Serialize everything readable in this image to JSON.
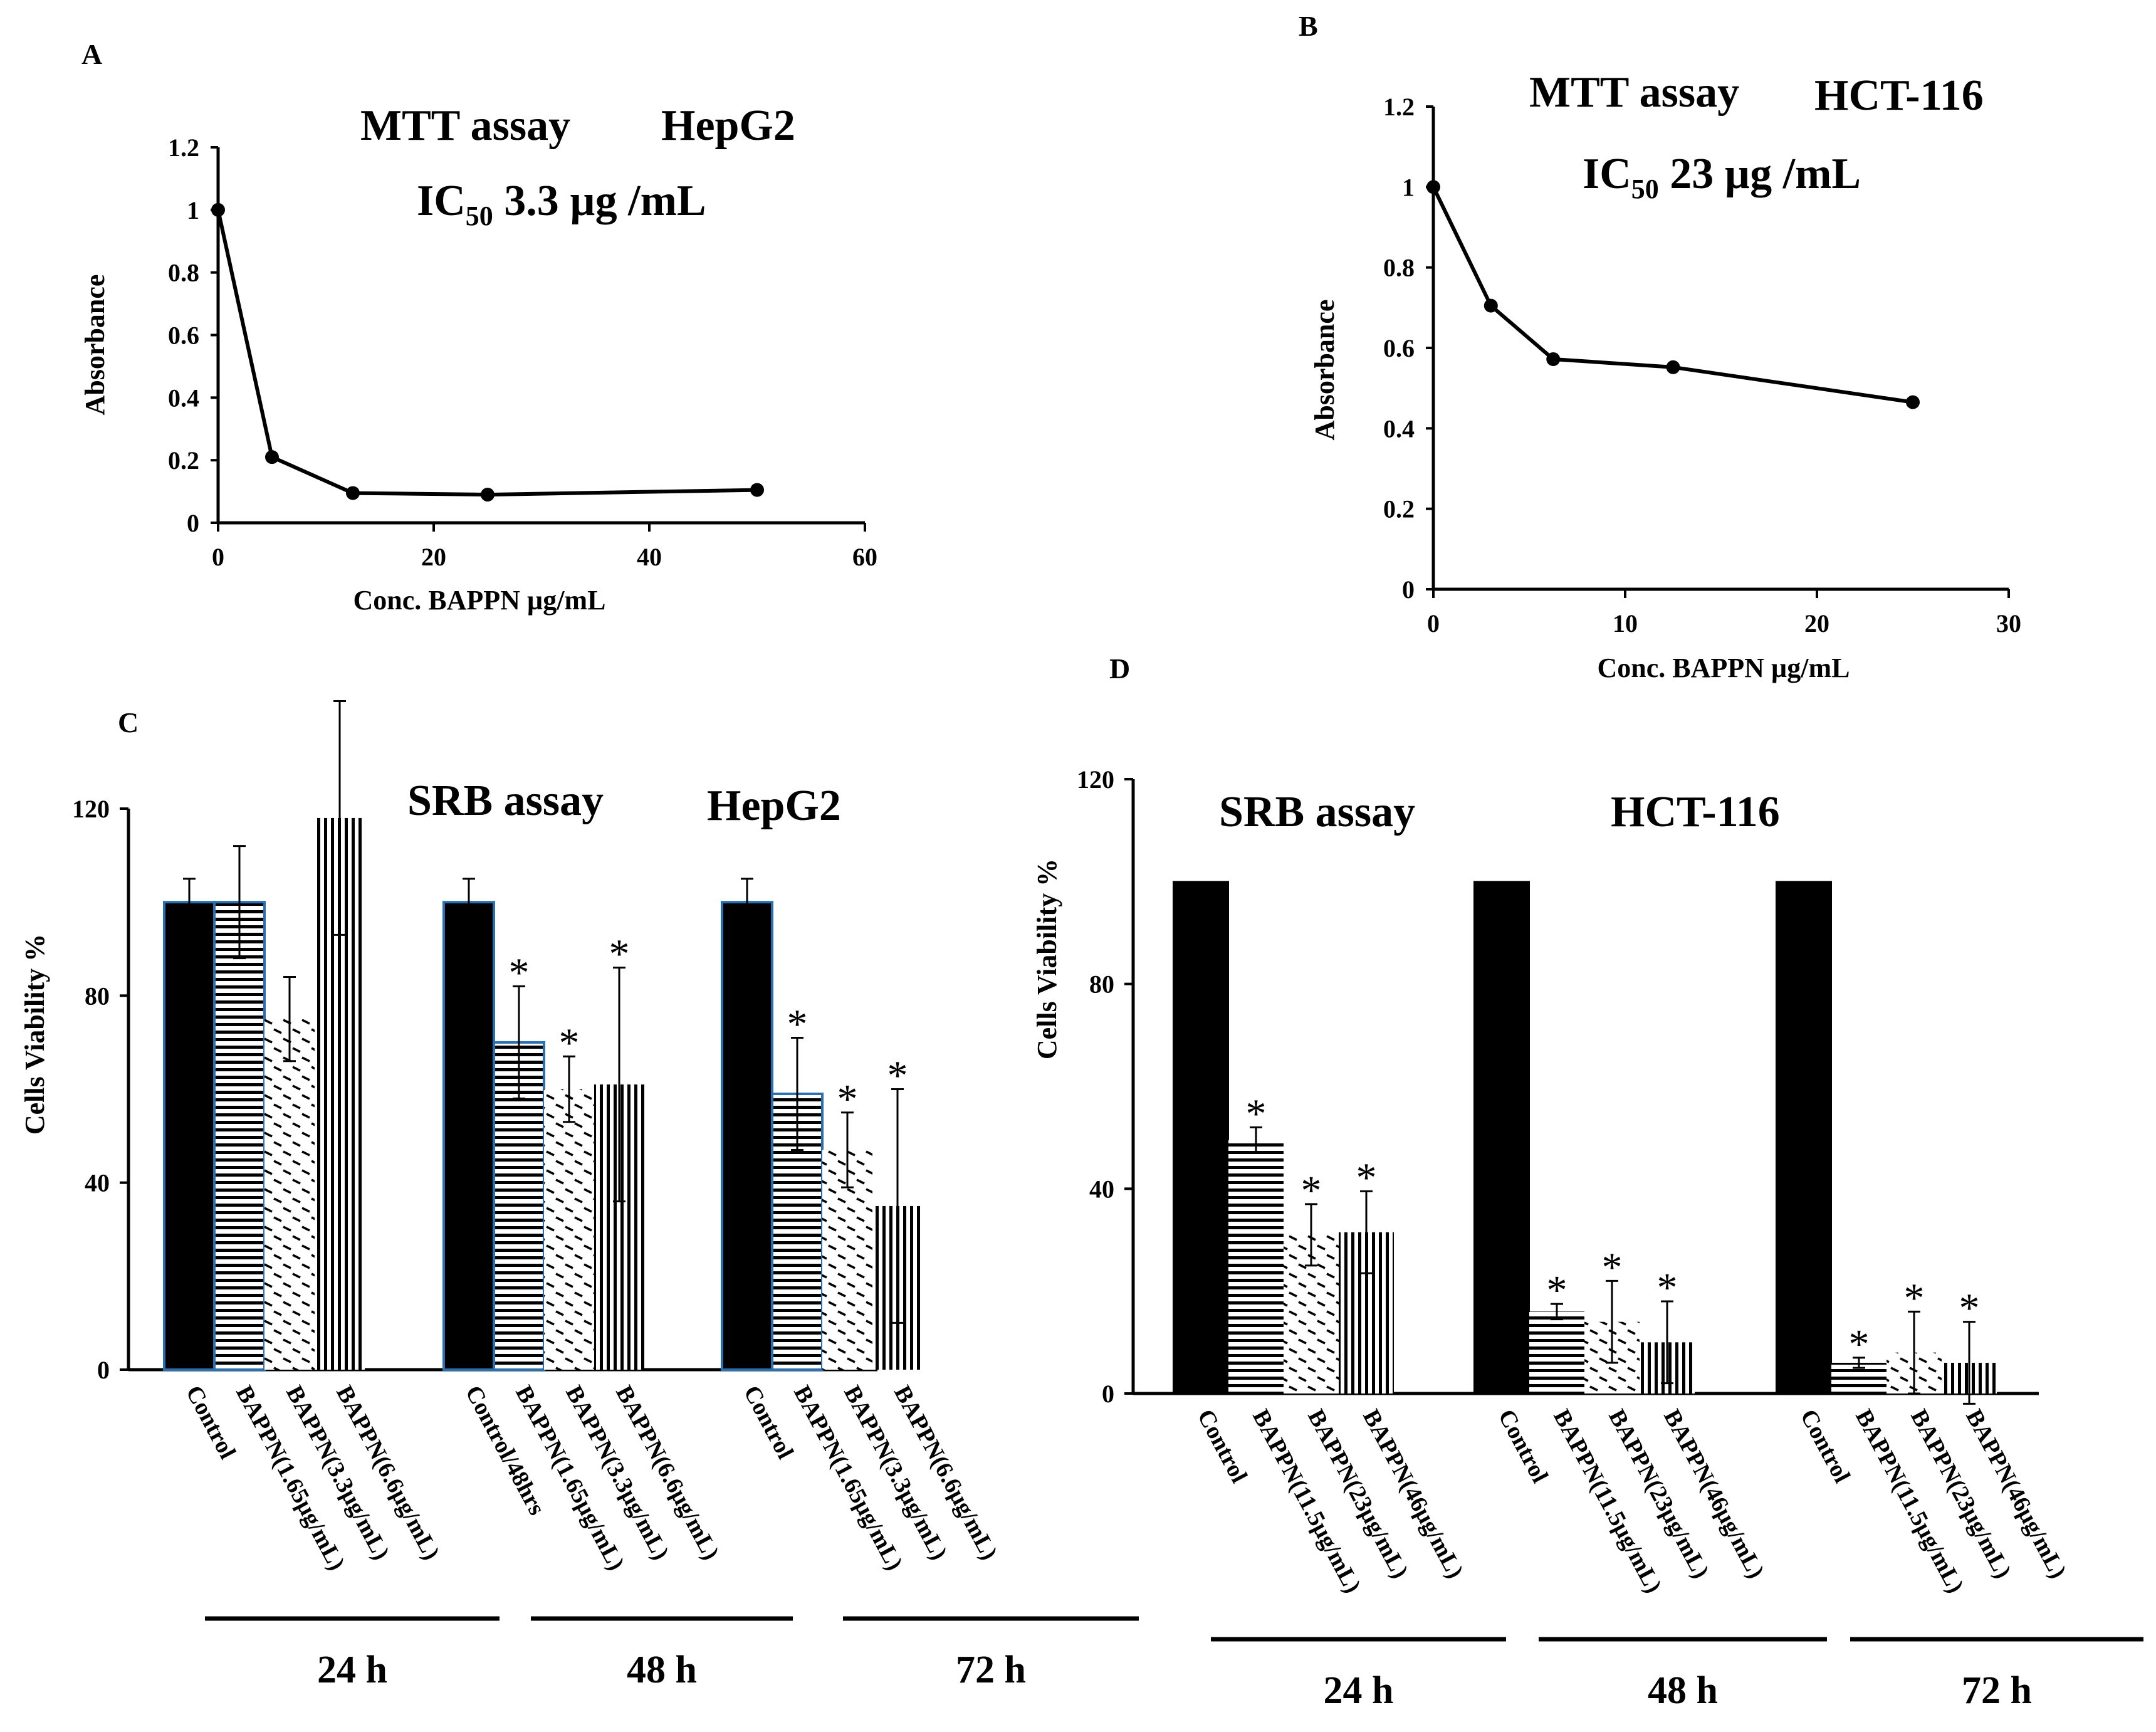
{
  "chart_data": [
    {
      "id": "A",
      "type": "line",
      "panel": "A",
      "title": "MTT assay",
      "cell_line": "HepG2",
      "ic50_prefix": "IC",
      "ic50_sub": "50",
      "ic50_value": " 3.3 µg /mL",
      "xlabel": "Conc. BAPPN µg/mL",
      "ylabel": "Absorbance",
      "xlim": [
        0,
        60
      ],
      "ylim": [
        0,
        1.2
      ],
      "xticks": [
        0,
        20,
        40,
        60
      ],
      "yticks": [
        0,
        0.2,
        0.4,
        0.6,
        0.8,
        1,
        1.2
      ],
      "x": [
        0,
        5,
        12.5,
        25,
        50
      ],
      "y": [
        1,
        0.21,
        0.095,
        0.09,
        0.105
      ]
    },
    {
      "id": "B",
      "type": "line",
      "panel": "B",
      "title": "MTT assay",
      "cell_line": "HCT-116",
      "ic50_prefix": "IC",
      "ic50_sub": "50",
      "ic50_value": " 23 µg /mL",
      "xlabel": "Conc. BAPPN µg/mL",
      "ylabel": "Absorbance",
      "xlim": [
        0,
        30
      ],
      "ylim": [
        0,
        1.2
      ],
      "xticks": [
        0,
        10,
        20,
        30
      ],
      "yticks": [
        0,
        0.2,
        0.4,
        0.6,
        0.8,
        1,
        1.2
      ],
      "x": [
        0,
        3,
        6.25,
        12.5,
        25
      ],
      "y": [
        1,
        0.705,
        0.572,
        0.552,
        0.465
      ]
    },
    {
      "id": "C",
      "type": "bar",
      "panel": "C",
      "title": "SRB assay",
      "cell_line": "HepG2",
      "ylabel": "Cells Viability %",
      "ylim": [
        0,
        120
      ],
      "yticks": [
        0,
        40,
        80,
        120
      ],
      "groups": [
        {
          "period": "24 h",
          "categories": [
            "Control",
            "BAPPN(1.65µg/mL)",
            "BAPPN(3.3µg/mL)",
            "BAPPN(6.6µg/mL)"
          ],
          "values": [
            100,
            100,
            75,
            118
          ],
          "errors": [
            5,
            12,
            9,
            25
          ],
          "significant": [
            false,
            false,
            false,
            false
          ]
        },
        {
          "period": "48 h",
          "categories": [
            "Control/48hrs",
            "BAPPN(1.65µg/mL)",
            "BAPPN(3.3µg/mL)",
            "BAPPN(6.6µg/mL)"
          ],
          "values": [
            100,
            70,
            60,
            61
          ],
          "errors": [
            5,
            12,
            7,
            25
          ],
          "significant": [
            false,
            true,
            true,
            true
          ]
        },
        {
          "period": "72 h",
          "categories": [
            "Control",
            "BAPPN(1.65µg/mL)",
            "BAPPN(3.3µg/mL)",
            "BAPPN(6.6µg/mL)"
          ],
          "values": [
            100,
            59,
            47,
            35
          ],
          "errors": [
            5,
            12,
            8,
            25
          ],
          "significant": [
            false,
            true,
            true,
            true
          ]
        }
      ],
      "significance_marker": "*"
    },
    {
      "id": "D",
      "type": "bar",
      "panel": "D",
      "title": "SRB assay",
      "cell_line": "HCT-116",
      "ylabel": "Cells Viability %",
      "ylim": [
        0,
        120
      ],
      "yticks": [
        0,
        40,
        80,
        120
      ],
      "groups": [
        {
          "period": "24 h",
          "categories": [
            "Control",
            "BAPPN(11.5µg/mL)",
            "BAPPN(23µg/mL)",
            "BAPPN(46µg/mL)"
          ],
          "values": [
            100,
            49.5,
            31,
            31.5
          ],
          "errors": [
            0,
            2.5,
            6,
            8
          ],
          "significant": [
            false,
            true,
            true,
            true
          ]
        },
        {
          "period": "48 h",
          "categories": [
            "Control",
            "BAPPN(11.5µg/mL)",
            "BAPPN(23µg/mL)",
            "BAPPN(46µg/mL)"
          ],
          "values": [
            100,
            16,
            14,
            10
          ],
          "errors": [
            0,
            1.5,
            8,
            8
          ],
          "significant": [
            false,
            true,
            true,
            true
          ]
        },
        {
          "period": "72 h",
          "categories": [
            "Control",
            "BAPPN(11.5µg/mL)",
            "BAPPN(23µg/mL)",
            "BAPPN(46µg/mL)"
          ],
          "values": [
            100,
            6,
            8,
            6
          ],
          "errors": [
            0,
            1,
            8,
            8
          ],
          "significant": [
            false,
            true,
            true,
            true
          ]
        }
      ],
      "significance_marker": "*"
    }
  ]
}
